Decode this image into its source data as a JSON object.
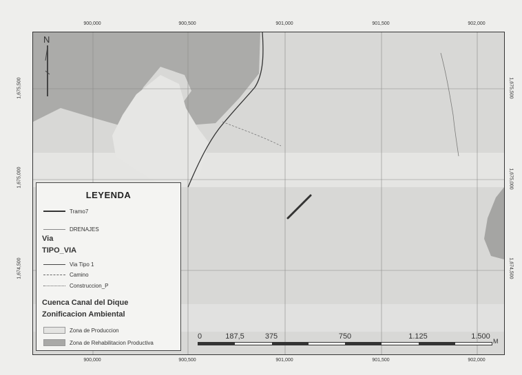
{
  "map": {
    "x_ticks": [
      "900,000",
      "900,500",
      "901,000",
      "901,500",
      "902,000"
    ],
    "y_ticks": [
      "1,675,500",
      "1,675,000",
      "1,674,500"
    ],
    "y_ticks_right": [
      "1,675,500",
      "1,675,000",
      "1,674,500"
    ],
    "north_label": "N",
    "colors": {
      "background": "#dcdcda",
      "production_zone": "#e4e4e2",
      "rehabilitation_zone": "#a9a9a7",
      "road": "#333333",
      "drainage": "#777777",
      "tramo": "#333333"
    }
  },
  "legend": {
    "title": "LEYENDA",
    "items_top": [
      {
        "label": "Tramo7",
        "symbol": "thick-line"
      },
      {
        "label": "DRENAJES",
        "symbol": "thin-line"
      }
    ],
    "section_via": "Via",
    "section_tipo": "TIPO_VIA",
    "via_items": [
      {
        "label": "Via Tipo 1",
        "symbol": "solid-line"
      },
      {
        "label": "Camino",
        "symbol": "dashed-line"
      },
      {
        "label": "Construccion_P",
        "symbol": "dotted-line"
      }
    ],
    "section_cuenca": "Cuenca Canal del Dique",
    "section_zonificacion": "Zonificacion Ambiental",
    "zone_items": [
      {
        "label": "Zona de Produccion",
        "symbol": "light-box"
      },
      {
        "label": "Zona de Rehabilitacion Productiva",
        "symbol": "dark-box"
      }
    ]
  },
  "scalebar": {
    "labels": [
      "0",
      "187,5",
      "375",
      "750",
      "1.125",
      "1.500"
    ],
    "unit": "M"
  }
}
